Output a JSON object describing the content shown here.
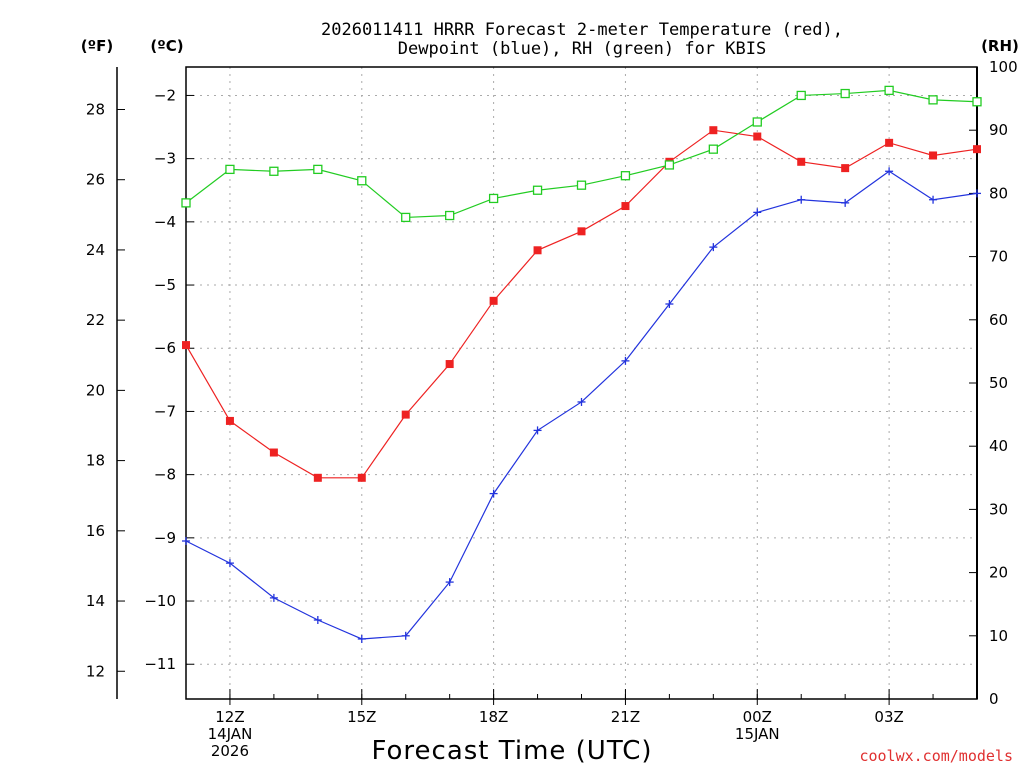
{
  "chart_data": {
    "type": "line",
    "title": [
      "2026011411 HRRR Forecast 2-meter Temperature (red),",
      "Dewpoint (blue), RH (green) for KBIS"
    ],
    "unit_labels": {
      "fahrenheit": "(ºF)",
      "celsius": "(ºC)",
      "rh": "(RH)"
    },
    "xlabel": "Forecast Time (UTC)",
    "credit": "coolwx.com/models",
    "x_hours": [
      11,
      12,
      13,
      14,
      15,
      16,
      17,
      18,
      19,
      20,
      21,
      22,
      23,
      24,
      25,
      26,
      27,
      28,
      29
    ],
    "xlim": [
      11,
      29
    ],
    "x_ticks": [
      {
        "hour": 12,
        "lines": [
          "12Z",
          "14JAN",
          "2026"
        ]
      },
      {
        "hour": 15,
        "lines": [
          "15Z"
        ]
      },
      {
        "hour": 18,
        "lines": [
          "18Z"
        ]
      },
      {
        "hour": 21,
        "lines": [
          "21Z"
        ]
      },
      {
        "hour": 24,
        "lines": [
          "00Z",
          "15JAN"
        ]
      },
      {
        "hour": 27,
        "lines": [
          "03Z"
        ]
      }
    ],
    "celsius_axis": {
      "ylim": [
        -11.55,
        -1.55
      ],
      "ticks": [
        -2,
        -3,
        -4,
        -5,
        -6,
        -7,
        -8,
        -9,
        -10,
        -11
      ],
      "tick_labels": [
        "−2",
        "−3",
        "−4",
        "−5",
        "−6",
        "−7",
        "−8",
        "−9",
        "−10",
        "−11"
      ]
    },
    "fahrenheit_axis": {
      "ticks": [
        12,
        14,
        16,
        18,
        20,
        22,
        24,
        26,
        28
      ],
      "tick_labels": [
        "12",
        "14",
        "16",
        "18",
        "20",
        "22",
        "24",
        "26",
        "28"
      ]
    },
    "rh_axis": {
      "ylim": [
        0,
        100
      ],
      "ticks": [
        0,
        10,
        20,
        30,
        40,
        50,
        60,
        70,
        80,
        90,
        100
      ],
      "tick_labels": [
        "0",
        "10",
        "20",
        "30",
        "40",
        "50",
        "60",
        "70",
        "80",
        "90",
        "100"
      ]
    },
    "series": [
      {
        "name": "Temperature (°C)",
        "axis": "celsius",
        "color": "#ee2222",
        "marker": "filled-square",
        "values": [
          -5.95,
          -7.15,
          -7.65,
          -8.05,
          -8.05,
          -7.05,
          -6.25,
          -5.25,
          -4.45,
          -4.15,
          -3.75,
          -3.05,
          -2.55,
          -2.65,
          -3.05,
          -3.15,
          -2.75,
          -2.95,
          -2.85
        ]
      },
      {
        "name": "Dewpoint (°C)",
        "axis": "celsius",
        "color": "#2233dd",
        "marker": "plus",
        "values": [
          -9.05,
          -9.4,
          -9.95,
          -10.3,
          -10.6,
          -10.55,
          -9.7,
          -8.3,
          -7.3,
          -6.85,
          -6.2,
          -5.3,
          -4.4,
          -3.85,
          -3.65,
          -3.7,
          -3.2,
          -3.65,
          -3.55
        ]
      },
      {
        "name": "RH (%)",
        "axis": "rh",
        "color": "#22cc22",
        "marker": "open-square",
        "values": [
          78.5,
          83.8,
          83.5,
          83.8,
          82,
          76.2,
          76.5,
          79.2,
          80.5,
          81.3,
          82.8,
          84.5,
          87,
          91.3,
          95.5,
          95.8,
          96.3,
          94.8,
          94.5
        ]
      }
    ],
    "grid": true
  }
}
